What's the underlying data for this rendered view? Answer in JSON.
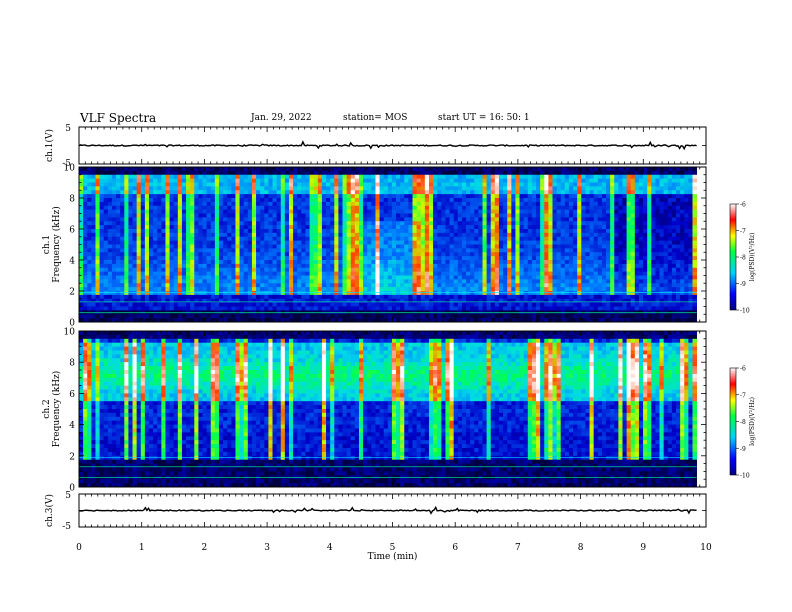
{
  "header": {
    "title": "VLF Spectra",
    "date": "Jan. 29, 2022",
    "station": "station= MOS",
    "start": "start  UT  =   16: 50: 1"
  },
  "chart_data": [
    {
      "type": "line",
      "name": "ch.1 waveform",
      "ylabel": "ch.1(V)",
      "yticks": [
        "5",
        "-5"
      ],
      "ylim": [
        -5,
        5
      ],
      "xlim": [
        0,
        10
      ],
      "level": 0
    },
    {
      "type": "heatmap",
      "name": "ch.1 spectrogram",
      "ylabel": "ch.1\nFrequency (kHz)",
      "xlim": [
        0,
        10
      ],
      "ylim": [
        0,
        10
      ],
      "data_xlim": [
        0,
        9.85
      ],
      "yticks": [
        0,
        2,
        4,
        6,
        8,
        10
      ],
      "colorbar": {
        "label": "log(PSD)(V²/Hz)",
        "range": [
          -10,
          -6
        ],
        "ticks": [
          "-6",
          "-7",
          "-8",
          "-9",
          "-10"
        ]
      }
    },
    {
      "type": "heatmap",
      "name": "ch.2 spectrogram",
      "ylabel": "ch.2\nFrequency (kHz)",
      "xlim": [
        0,
        10
      ],
      "ylim": [
        0,
        10
      ],
      "data_xlim": [
        0,
        9.85
      ],
      "yticks": [
        0,
        2,
        4,
        6,
        8,
        10
      ],
      "colorbar": {
        "label": "log(PSD)(V²/Hz)",
        "range": [
          -10,
          -6
        ],
        "ticks": [
          "-6",
          "-7",
          "-8",
          "-9",
          "-10"
        ]
      }
    },
    {
      "type": "line",
      "name": "ch.3 waveform",
      "ylabel": "ch.3(V)",
      "yticks": [
        "5",
        "-5"
      ],
      "ylim": [
        -5,
        5
      ],
      "xlim": [
        0,
        10
      ],
      "level": 0
    }
  ],
  "xaxis": {
    "label": "Time  (min)",
    "ticks": [
      "0",
      "1",
      "2",
      "3",
      "4",
      "5",
      "6",
      "7",
      "8",
      "9",
      "10"
    ]
  }
}
